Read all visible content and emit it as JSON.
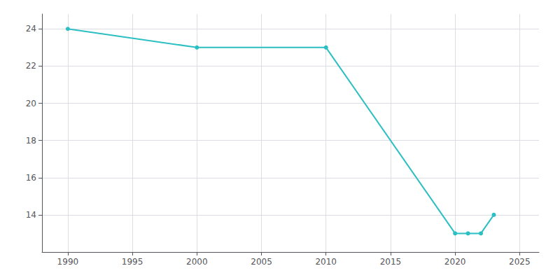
{
  "chart_data": {
    "type": "line",
    "x": [
      1990,
      2000,
      2010,
      2020,
      2021,
      2022,
      2023
    ],
    "values": [
      24,
      23,
      23,
      13,
      13,
      13,
      14
    ],
    "color": "#2BBFC3",
    "marker": "circle",
    "xlim": [
      1988,
      2026.5
    ],
    "ylim": [
      12.0,
      24.8
    ],
    "xticks": [
      1990,
      1995,
      2000,
      2005,
      2010,
      2015,
      2020,
      2025
    ],
    "yticks": [
      14,
      16,
      18,
      20,
      22,
      24
    ],
    "grid": true
  }
}
